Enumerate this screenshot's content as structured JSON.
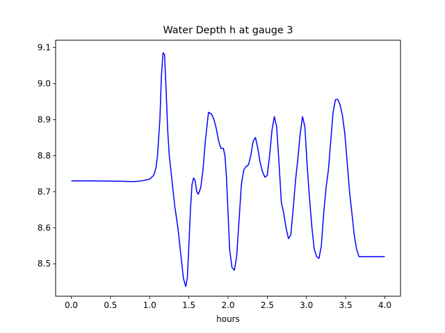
{
  "chart_data": {
    "type": "line",
    "title": "Water Depth h at gauge 3",
    "xlabel": "hours",
    "ylabel": "",
    "xlim": [
      -0.2,
      4.2
    ],
    "ylim": [
      8.41,
      9.12
    ],
    "xticks": [
      0.0,
      0.5,
      1.0,
      1.5,
      2.0,
      2.5,
      3.0,
      3.5,
      4.0
    ],
    "xtick_labels": [
      "0.0",
      "0.5",
      "1.0",
      "1.5",
      "2.0",
      "2.5",
      "3.0",
      "3.5",
      "4.0"
    ],
    "yticks": [
      8.5,
      8.6,
      8.7,
      8.8,
      8.9,
      9.0,
      9.1
    ],
    "ytick_labels": [
      "8.5",
      "8.6",
      "8.7",
      "8.8",
      "8.9",
      "9.0",
      "9.1"
    ],
    "grid": false,
    "legend": "none",
    "series": [
      {
        "color": "#0000ff",
        "x": [
          0.0,
          0.3,
          0.6,
          0.8,
          0.9,
          1.0,
          1.05,
          1.08,
          1.1,
          1.13,
          1.15,
          1.17,
          1.19,
          1.21,
          1.23,
          1.25,
          1.27,
          1.29,
          1.32,
          1.36,
          1.4,
          1.43,
          1.46,
          1.48,
          1.5,
          1.52,
          1.54,
          1.56,
          1.58,
          1.6,
          1.62,
          1.65,
          1.68,
          1.71,
          1.75,
          1.79,
          1.82,
          1.85,
          1.88,
          1.91,
          1.94,
          1.96,
          1.98,
          2.0,
          2.02,
          2.05,
          2.08,
          2.11,
          2.14,
          2.17,
          2.2,
          2.23,
          2.26,
          2.29,
          2.32,
          2.35,
          2.38,
          2.41,
          2.44,
          2.47,
          2.5,
          2.53,
          2.56,
          2.59,
          2.62,
          2.65,
          2.68,
          2.71,
          2.74,
          2.77,
          2.8,
          2.83,
          2.86,
          2.89,
          2.92,
          2.95,
          2.98,
          3.01,
          3.04,
          3.07,
          3.1,
          3.13,
          3.16,
          3.19,
          3.22,
          3.25,
          3.28,
          3.31,
          3.34,
          3.37,
          3.4,
          3.43,
          3.46,
          3.49,
          3.52,
          3.55,
          3.58,
          3.61,
          3.64,
          3.67,
          3.7,
          3.73,
          3.76,
          3.79,
          3.82,
          3.85,
          3.88,
          3.91,
          3.94,
          3.97,
          4.0
        ],
        "y": [
          8.73,
          8.73,
          8.729,
          8.728,
          8.73,
          8.735,
          8.745,
          8.765,
          8.8,
          8.9,
          9.02,
          9.085,
          9.08,
          8.98,
          8.87,
          8.8,
          8.76,
          8.72,
          8.66,
          8.6,
          8.52,
          8.46,
          8.437,
          8.46,
          8.55,
          8.65,
          8.72,
          8.738,
          8.73,
          8.7,
          8.693,
          8.71,
          8.76,
          8.84,
          8.92,
          8.915,
          8.9,
          8.875,
          8.84,
          8.82,
          8.82,
          8.8,
          8.74,
          8.64,
          8.54,
          8.49,
          8.482,
          8.52,
          8.62,
          8.72,
          8.76,
          8.77,
          8.774,
          8.8,
          8.84,
          8.85,
          8.82,
          8.78,
          8.755,
          8.74,
          8.745,
          8.8,
          8.87,
          8.908,
          8.88,
          8.78,
          8.67,
          8.64,
          8.6,
          8.57,
          8.58,
          8.65,
          8.73,
          8.79,
          8.86,
          8.908,
          8.88,
          8.77,
          8.68,
          8.6,
          8.54,
          8.52,
          8.515,
          8.55,
          8.64,
          8.71,
          8.76,
          8.84,
          8.92,
          8.955,
          8.956,
          8.94,
          8.91,
          8.86,
          8.78,
          8.7,
          8.64,
          8.58,
          8.54,
          8.52,
          8.52,
          8.52,
          8.52,
          8.52,
          8.52,
          8.52,
          8.52,
          8.52,
          8.52,
          8.52,
          8.52
        ]
      }
    ]
  }
}
